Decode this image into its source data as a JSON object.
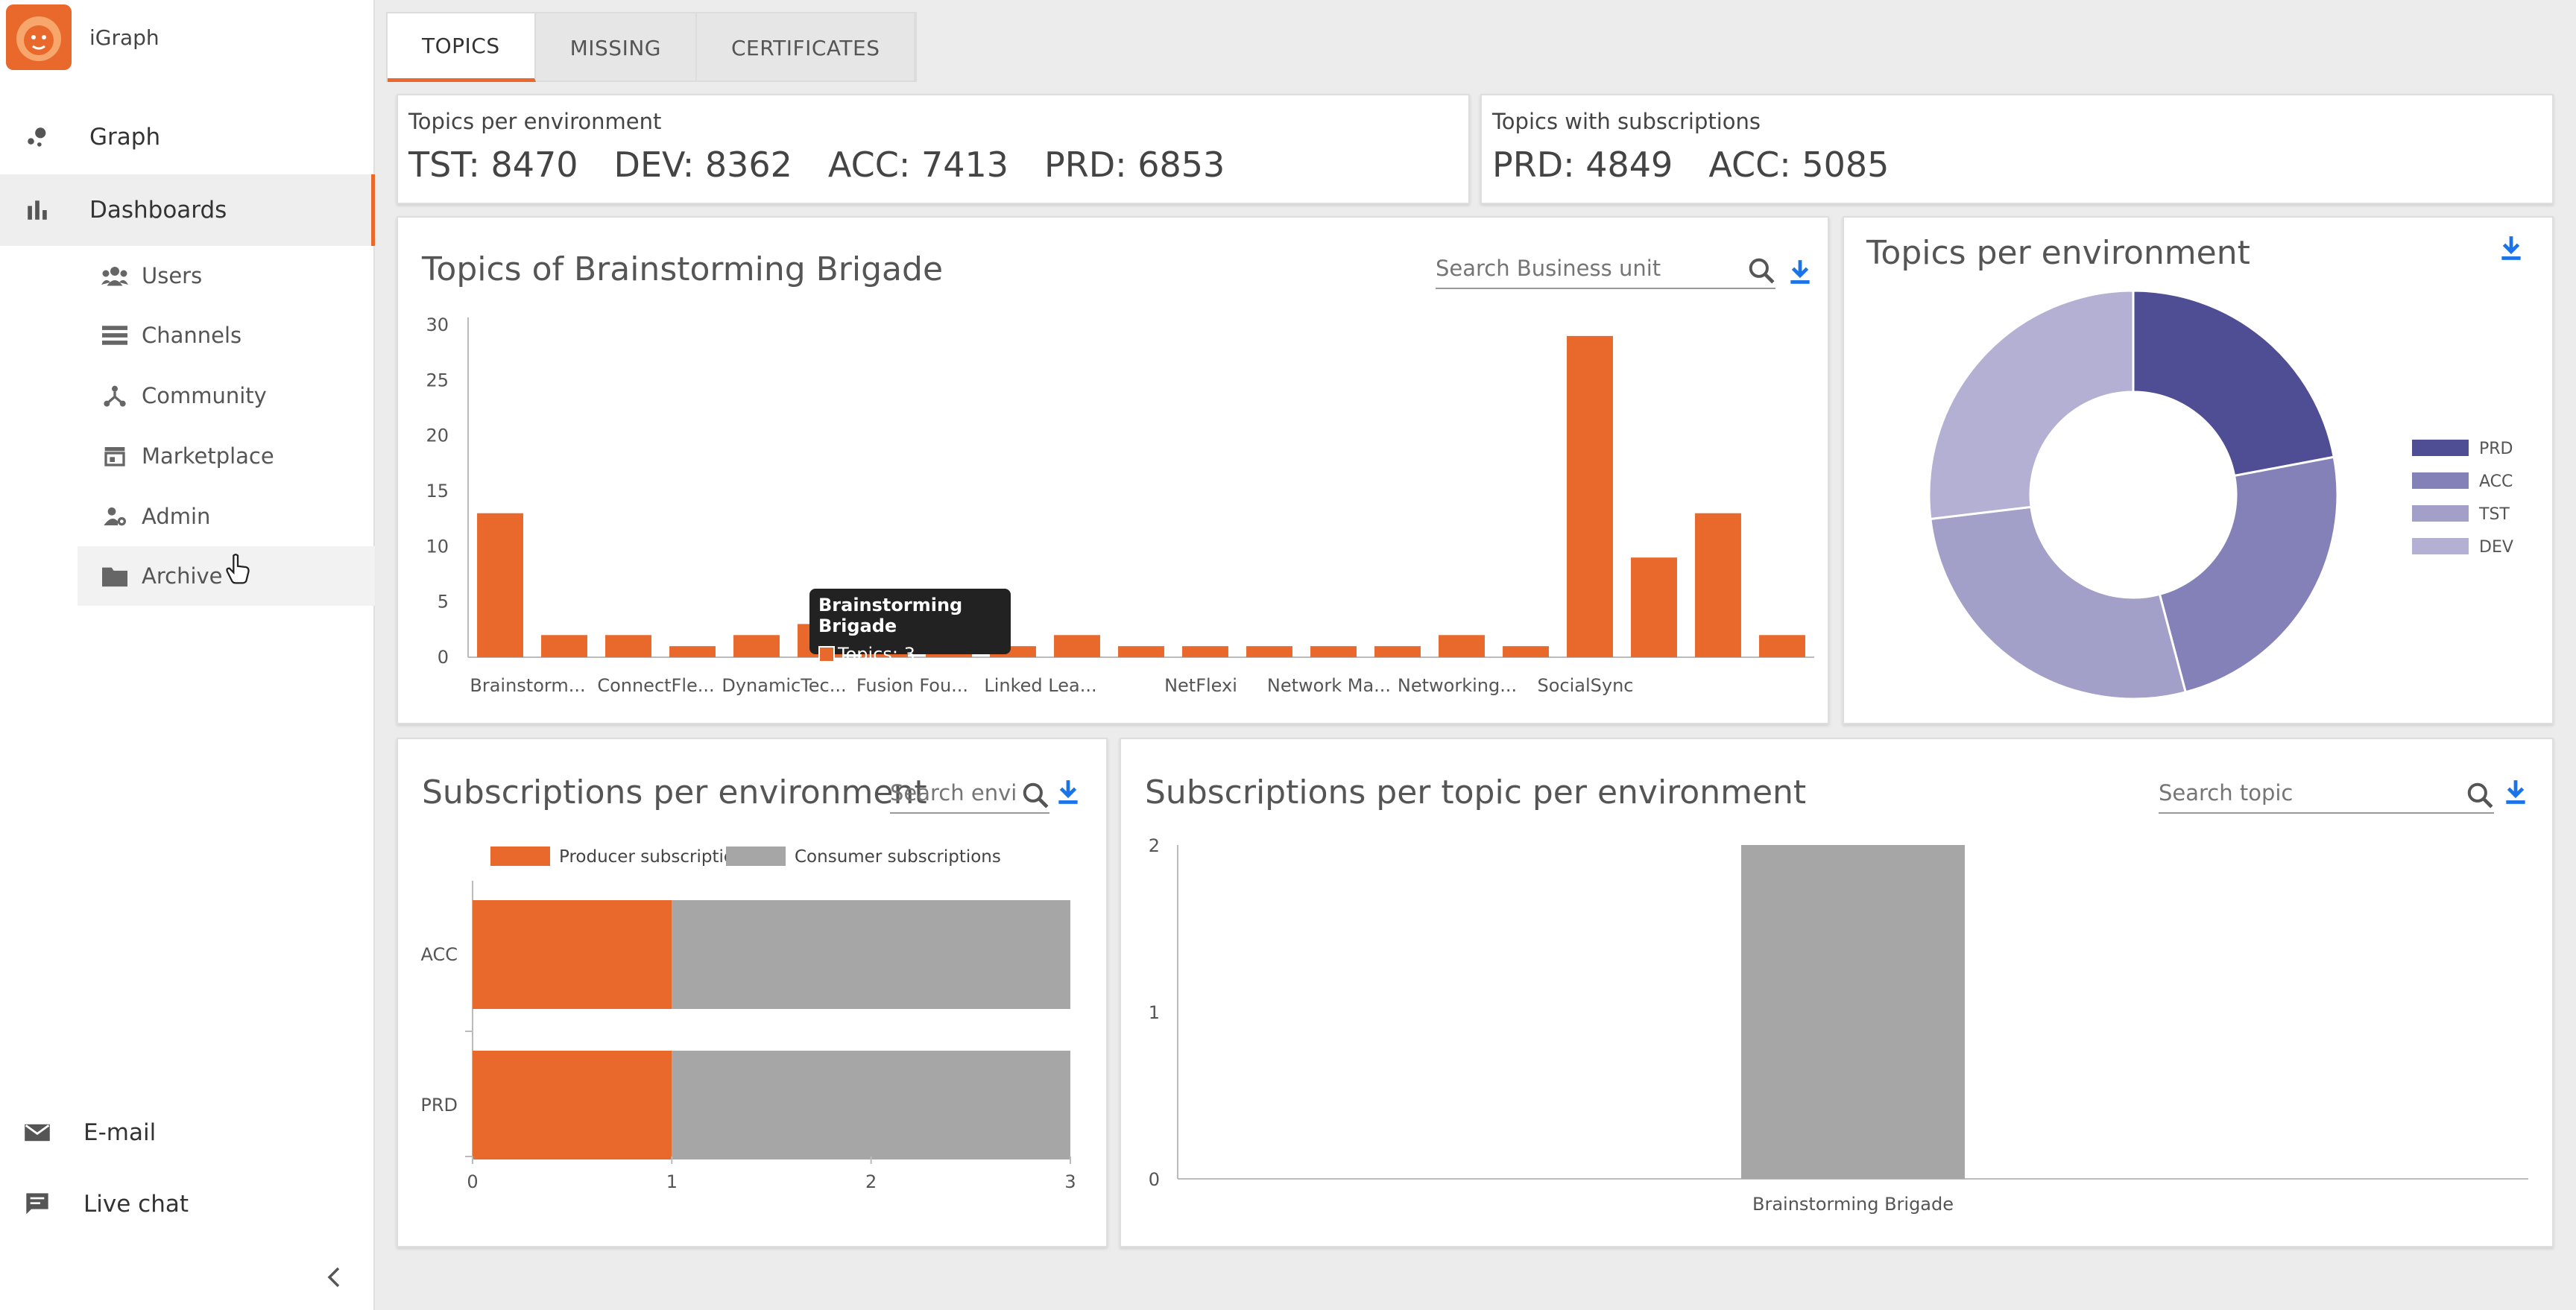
{
  "app": {
    "title": "iGraph"
  },
  "colors": {
    "accent": "#e8692b",
    "producer": "#e8692b",
    "consumer": "#a6a6a6",
    "prd": "#4f4d93",
    "acc": "#8481b9",
    "tst": "#a29fc8",
    "dev": "#b3b0d3"
  },
  "sidebar": {
    "items": [
      {
        "label": "Graph",
        "icon": "graph-icon"
      },
      {
        "label": "Dashboards",
        "icon": "bar-chart-icon"
      }
    ],
    "subitems": [
      {
        "label": "Users",
        "icon": "users-icon"
      },
      {
        "label": "Channels",
        "icon": "channels-icon"
      },
      {
        "label": "Community",
        "icon": "community-icon"
      },
      {
        "label": "Marketplace",
        "icon": "store-icon"
      },
      {
        "label": "Admin",
        "icon": "admin-icon"
      },
      {
        "label": "Archive",
        "icon": "folder-icon"
      }
    ],
    "footer": [
      {
        "label": "E-mail",
        "icon": "mail-icon"
      },
      {
        "label": "Live chat",
        "icon": "chat-icon"
      }
    ]
  },
  "tabs": [
    {
      "label": "TOPICS"
    },
    {
      "label": "MISSING"
    },
    {
      "label": "CERTIFICATES"
    }
  ],
  "stats": {
    "topics_per_env": {
      "title": "Topics per environment",
      "values": [
        "TST: 8470",
        "DEV: 8362",
        "ACC: 7413",
        "PRD: 6853"
      ]
    },
    "topics_with_subs": {
      "title": "Topics with subscriptions",
      "values": [
        "PRD: 4849",
        "ACC: 5085"
      ]
    }
  },
  "bu_chart": {
    "title": "Topics of Brainstorming Brigade",
    "search_placeholder": "Search Business unit",
    "tooltip": {
      "title": "Brainstorming Brigade",
      "label": "Topics: 3"
    }
  },
  "donut_card": {
    "title": "Topics per environment"
  },
  "subs_env_card": {
    "title": "Subscriptions per environment",
    "search_placeholder": "Search envi..."
  },
  "subs_topic_card": {
    "title": "Subscriptions per topic per environment",
    "search_placeholder": "Search topic"
  },
  "chart_data": [
    {
      "type": "bar",
      "title": "Topics of Brainstorming Brigade",
      "ylim": [
        0,
        30
      ],
      "yticks": [
        0,
        5,
        10,
        15,
        20,
        25,
        30
      ],
      "values": [
        13,
        2,
        2,
        1,
        2,
        3,
        2,
        1,
        1,
        2,
        1,
        1,
        1,
        1,
        1,
        2,
        1,
        29,
        9,
        13,
        2
      ],
      "category_labels": [
        "Brainstorm...",
        "ConnectFle...",
        "DynamicTec...",
        "Fusion Fou...",
        "Linked Lea...",
        "NetFlexi",
        "Network Ma...",
        "Networking...",
        "SocialSync"
      ],
      "xlabel": "",
      "ylabel": ""
    },
    {
      "type": "pie",
      "title": "Topics per environment",
      "labels": [
        "PRD",
        "ACC",
        "TST",
        "DEV"
      ],
      "values": [
        6853,
        7413,
        8470,
        8362
      ]
    },
    {
      "type": "bar",
      "orientation": "horizontal",
      "stacked": true,
      "title": "Subscriptions per environment",
      "categories": [
        "ACC",
        "PRD"
      ],
      "series": [
        {
          "name": "Producer subscriptions",
          "values": [
            1,
            1
          ]
        },
        {
          "name": "Consumer subscriptions",
          "values": [
            2,
            2
          ]
        }
      ],
      "xlim": [
        0,
        3
      ],
      "xticks": [
        0,
        1,
        2,
        3
      ]
    },
    {
      "type": "bar",
      "title": "Subscriptions per topic per environment",
      "categories": [
        "Brainstorming Brigade"
      ],
      "values": [
        2
      ],
      "ylim": [
        0,
        2
      ],
      "yticks": [
        0,
        1,
        2
      ]
    }
  ]
}
